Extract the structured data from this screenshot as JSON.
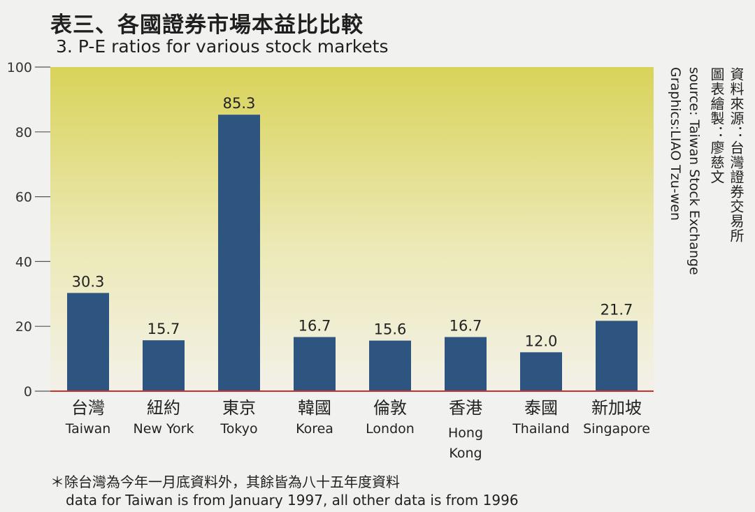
{
  "title_zh": "表三、各國證券市場本益比比較",
  "title_en": "3. P-E ratios for various stock markets",
  "source_zh": "資料來源：台灣證券交易所",
  "graphics_zh": "圖表繪製：廖慈文",
  "source_en": "source: Taiwan Stock Exchange",
  "graphics_en": "Graphics:LIAO Tzu-wen",
  "footnote_zh": "＊除台灣為今年一月底資料外，其餘皆為八十五年度資料",
  "footnote_en": "data for Taiwan is from January 1997, all other data is from 1996",
  "colors": {
    "bar": "#2d5580",
    "baseline": "#c8342b",
    "bg_top": "#d9d35a",
    "bg_bottom": "#f3f1e8"
  },
  "chart_data": {
    "type": "bar",
    "categories_zh": [
      "台灣",
      "紐約",
      "東京",
      "韓國",
      "倫敦",
      "香港",
      "泰國",
      "新加坡"
    ],
    "categories": [
      "Taiwan",
      "New York",
      "Tokyo",
      "Korea",
      "London",
      "Hong Kong",
      "Thailand",
      "Singapore"
    ],
    "values": [
      30.3,
      15.7,
      85.3,
      16.7,
      15.6,
      16.7,
      12.0,
      21.7
    ],
    "value_labels": [
      "30.3",
      "15.7",
      "85.3",
      "16.7",
      "15.6",
      "16.7",
      "12.0",
      "21.7"
    ],
    "y_ticks": [
      0,
      20,
      40,
      60,
      80,
      100
    ],
    "ylim": [
      0,
      100
    ],
    "grid": false,
    "legend": "none"
  }
}
